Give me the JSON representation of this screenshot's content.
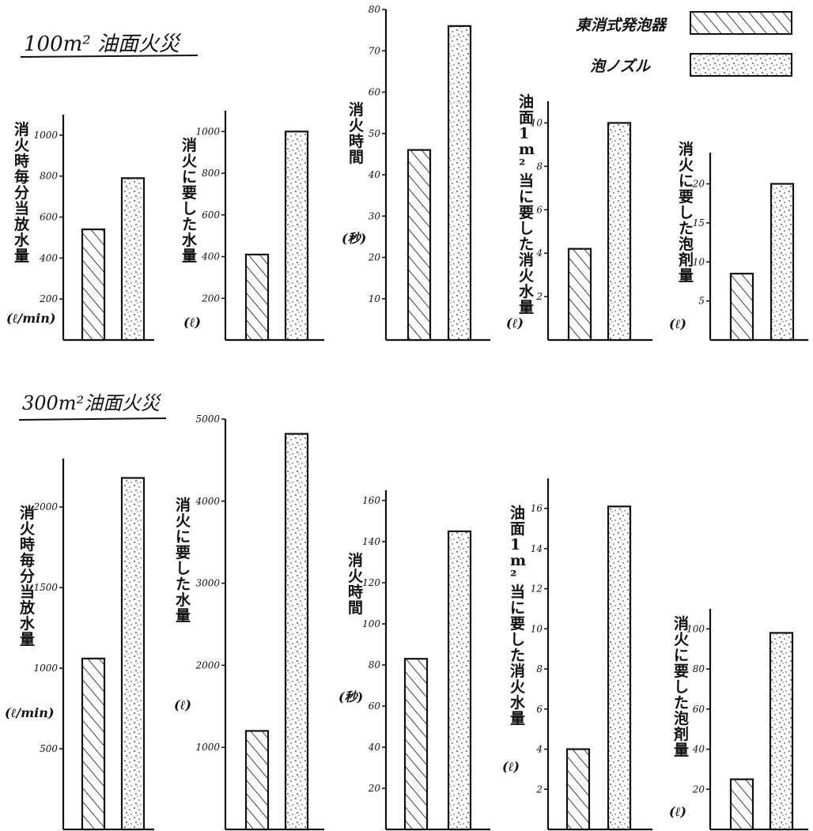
{
  "legend": {
    "items": [
      {
        "label": "東消式発泡器",
        "pattern": "hatch"
      },
      {
        "label": "泡ノズル",
        "pattern": "dots"
      }
    ]
  },
  "sections": [
    {
      "title": "100m² 油面火災"
    },
    {
      "title": "300m²油面火災"
    }
  ],
  "chart_data": [
    {
      "type": "bar",
      "section": 0,
      "ylabel": "消火時毎分当放水量",
      "unit": "(ℓ/min)",
      "yticks": [
        200,
        400,
        600,
        800,
        1000
      ],
      "ylim": [
        0,
        1100
      ],
      "categories": [
        "東消式発泡器",
        "泡ノズル"
      ],
      "values": [
        540,
        790
      ]
    },
    {
      "type": "bar",
      "section": 0,
      "ylabel": "消火に要した水量",
      "unit": "(ℓ)",
      "yticks": [
        200,
        400,
        600,
        800,
        1000
      ],
      "ylim": [
        0,
        1100
      ],
      "categories": [
        "東消式発泡器",
        "泡ノズル"
      ],
      "values": [
        410,
        1000
      ]
    },
    {
      "type": "bar",
      "section": 0,
      "ylabel": "消火時間",
      "unit": "(秒)",
      "yticks": [
        10,
        20,
        30,
        40,
        50,
        60,
        70,
        80
      ],
      "ylim": [
        0,
        80
      ],
      "categories": [
        "東消式発泡器",
        "泡ノズル"
      ],
      "values": [
        46,
        76
      ]
    },
    {
      "type": "bar",
      "section": 0,
      "ylabel": "油面1m²当に要した消火水量",
      "unit": "(ℓ)",
      "yticks": [
        2,
        4,
        6,
        8,
        10
      ],
      "ylim": [
        0,
        11
      ],
      "categories": [
        "東消式発泡器",
        "泡ノズル"
      ],
      "values": [
        4.2,
        10
      ]
    },
    {
      "type": "bar",
      "section": 0,
      "ylabel": "消火に要した泡剤量",
      "unit": "(ℓ)",
      "yticks": [
        5,
        10,
        15,
        20
      ],
      "ylim": [
        0,
        24
      ],
      "categories": [
        "東消式発泡器",
        "泡ノズル"
      ],
      "values": [
        8.5,
        20
      ]
    },
    {
      "type": "bar",
      "section": 1,
      "ylabel": "消火時毎分当放水量",
      "unit": "(ℓ/min)",
      "yticks": [
        500,
        1000,
        1500,
        2000
      ],
      "ylim": [
        0,
        2300
      ],
      "categories": [
        "東消式発泡器",
        "泡ノズル"
      ],
      "values": [
        1060,
        2180
      ]
    },
    {
      "type": "bar",
      "section": 1,
      "ylabel": "消火に要した水量",
      "unit": "(ℓ)",
      "yticks": [
        1000,
        2000,
        3000,
        4000,
        5000
      ],
      "ylim": [
        0,
        5000
      ],
      "categories": [
        "東消式発泡器",
        "泡ノズル"
      ],
      "values": [
        1200,
        4820
      ]
    },
    {
      "type": "bar",
      "section": 1,
      "ylabel": "消火時間",
      "unit": "(秒)",
      "yticks": [
        20,
        40,
        60,
        80,
        100,
        120,
        140,
        160
      ],
      "ylim": [
        0,
        165
      ],
      "categories": [
        "東消式発泡器",
        "泡ノズル"
      ],
      "values": [
        83,
        145
      ]
    },
    {
      "type": "bar",
      "section": 1,
      "ylabel": "油面1m²当に要した消火水量",
      "unit": "(ℓ)",
      "yticks": [
        2,
        4,
        6,
        8,
        10,
        12,
        14,
        16
      ],
      "ylim": [
        0,
        17.5
      ],
      "categories": [
        "東消式発泡器",
        "泡ノズル"
      ],
      "values": [
        4,
        16.1
      ]
    },
    {
      "type": "bar",
      "section": 1,
      "ylabel": "消火に要した泡剤量",
      "unit": "(ℓ)",
      "yticks": [
        20,
        40,
        60,
        80,
        100
      ],
      "ylim": [
        0,
        110
      ],
      "categories": [
        "東消式発泡器",
        "泡ノズル"
      ],
      "values": [
        25,
        98
      ]
    }
  ]
}
